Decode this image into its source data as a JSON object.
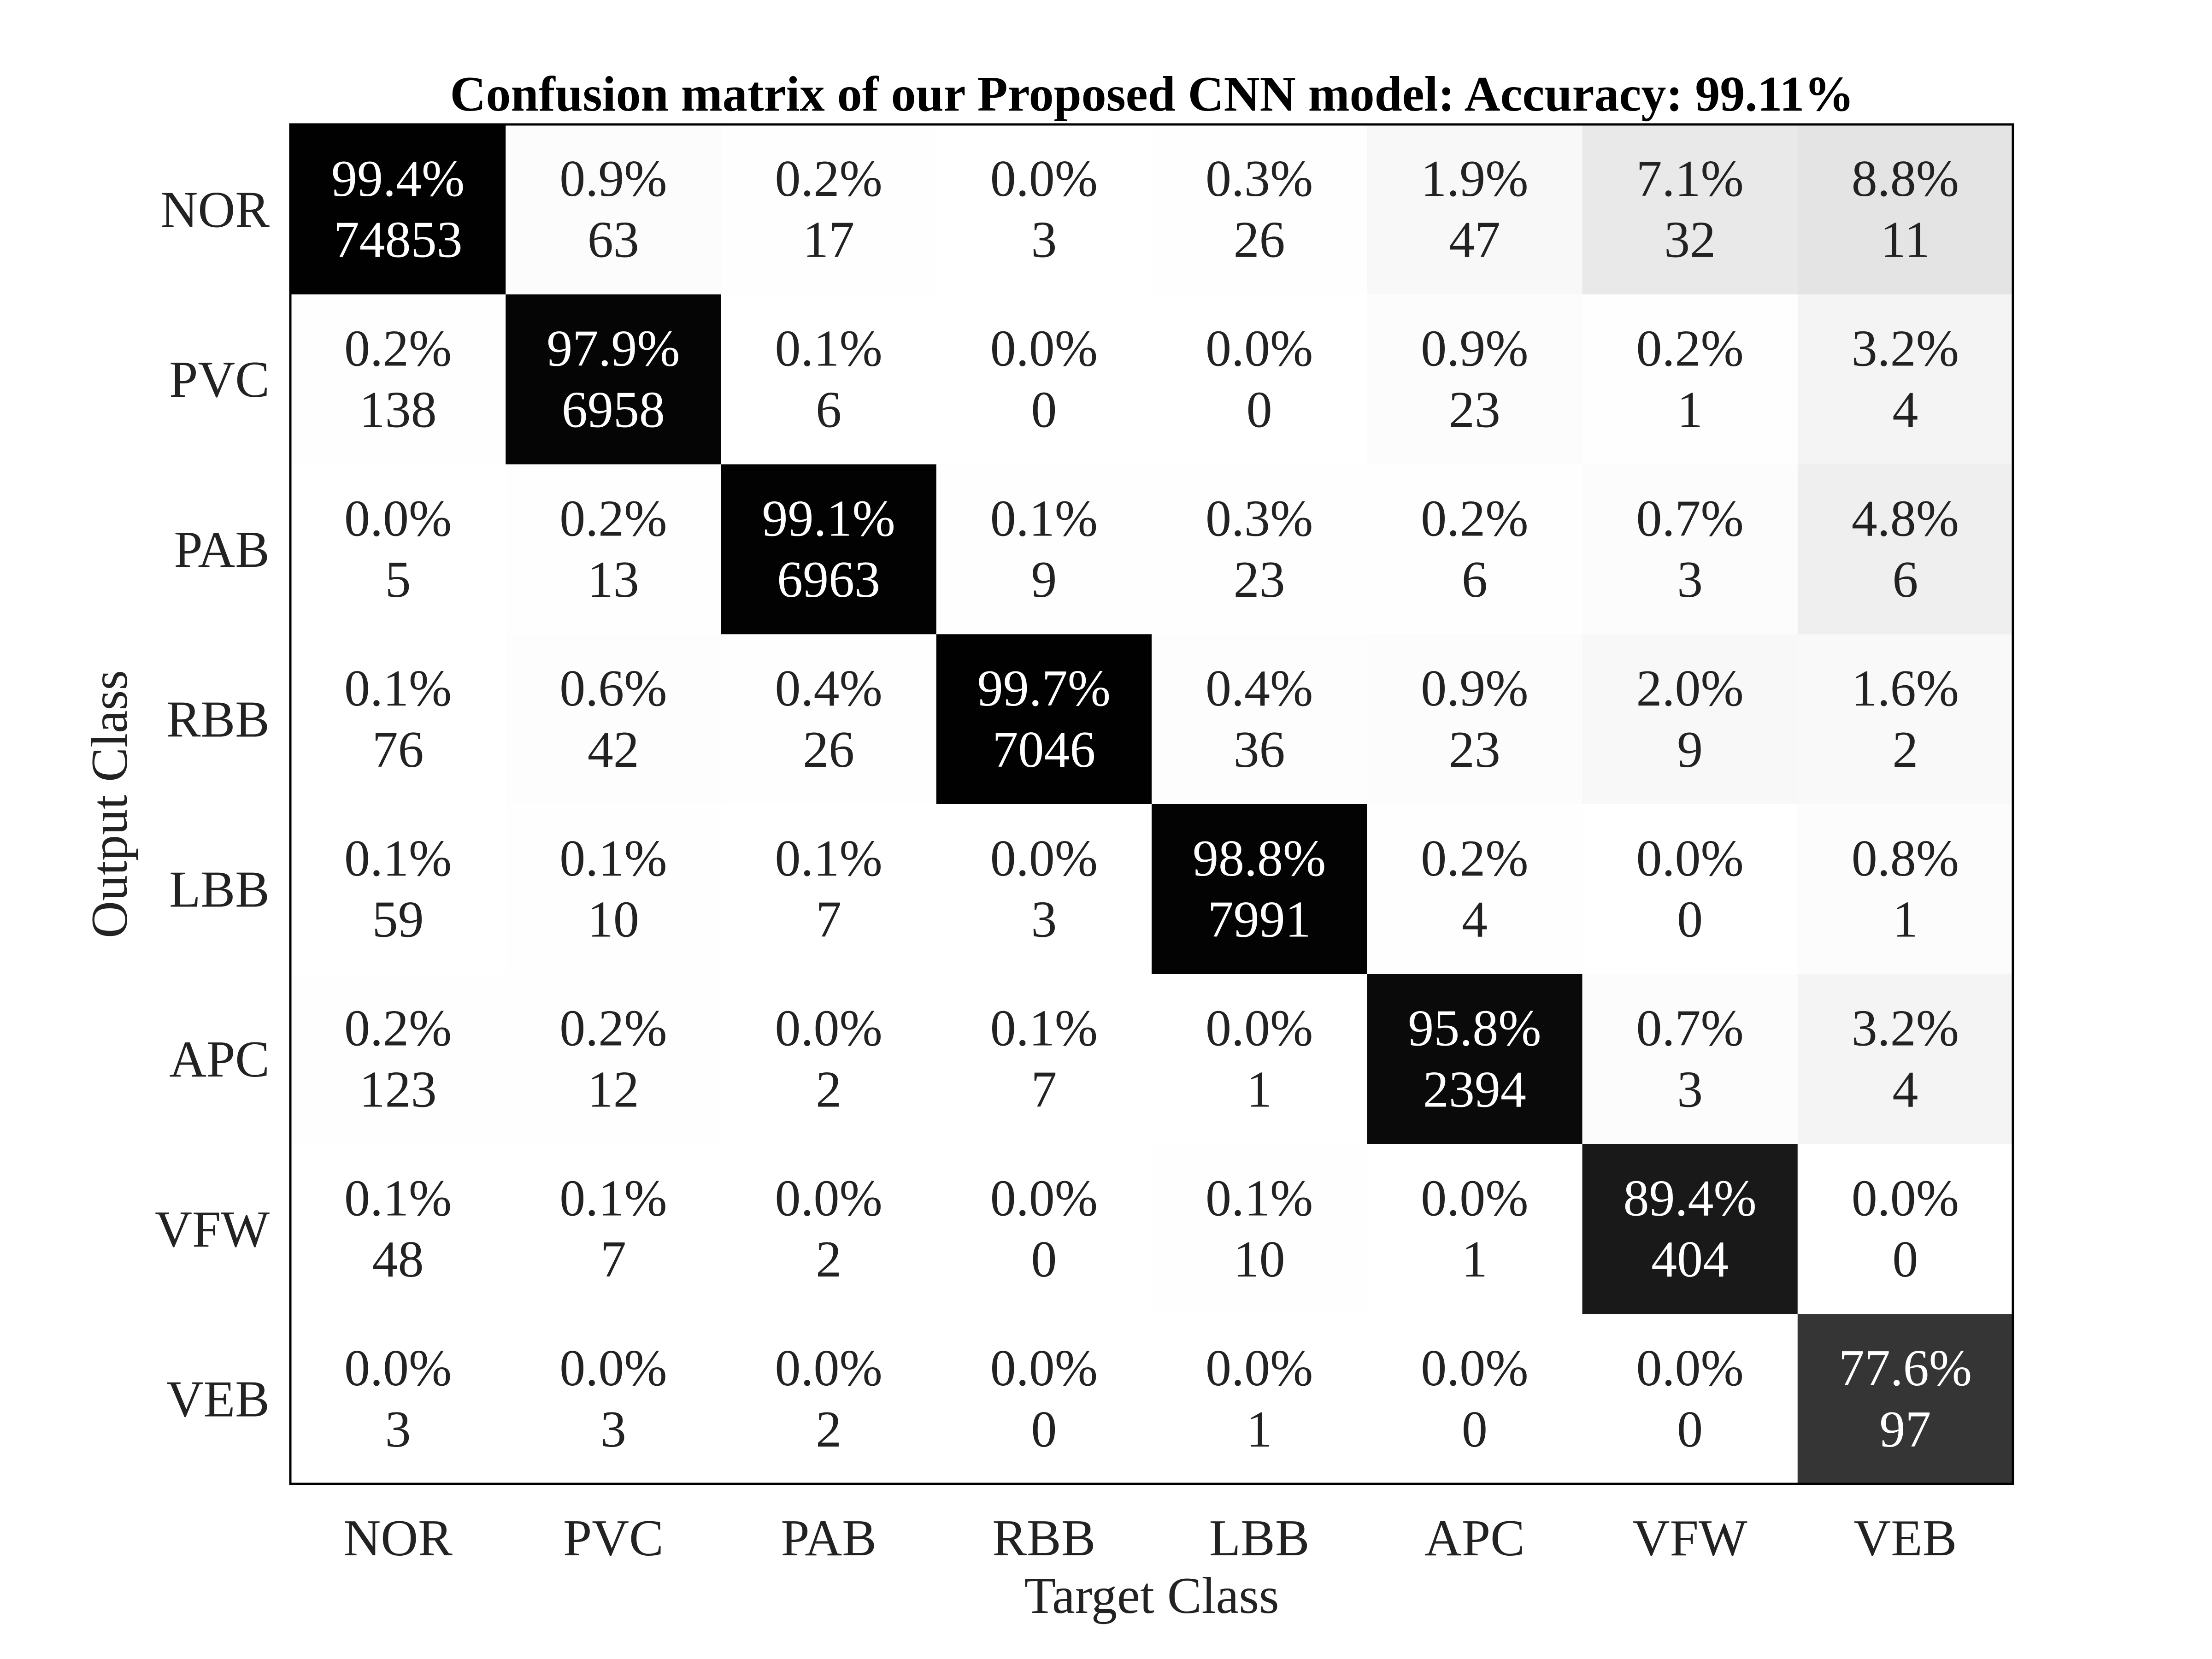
{
  "chart_data": {
    "type": "heatmap",
    "title": "Confusion matrix of our Proposed CNN model: Accuracy: 99.11%",
    "xlabel": "Target Class",
    "ylabel": "Output Class",
    "x_categories": [
      "NOR",
      "PVC",
      "PAB",
      "RBB",
      "LBB",
      "APC",
      "VFW",
      "VEB"
    ],
    "y_categories": [
      "NOR",
      "PVC",
      "PAB",
      "RBB",
      "LBB",
      "APC",
      "VFW",
      "VEB"
    ],
    "counts": [
      [
        74853,
        63,
        17,
        3,
        26,
        47,
        32,
        11
      ],
      [
        138,
        6958,
        6,
        0,
        0,
        23,
        1,
        4
      ],
      [
        5,
        13,
        6963,
        9,
        23,
        6,
        3,
        6
      ],
      [
        76,
        42,
        26,
        7046,
        36,
        23,
        9,
        2
      ],
      [
        59,
        10,
        7,
        3,
        7991,
        4,
        0,
        1
      ],
      [
        123,
        12,
        2,
        7,
        1,
        2394,
        3,
        4
      ],
      [
        48,
        7,
        2,
        0,
        10,
        1,
        404,
        0
      ],
      [
        3,
        3,
        2,
        0,
        1,
        0,
        0,
        97
      ]
    ],
    "percentages": [
      [
        "99.4%",
        "0.9%",
        "0.2%",
        "0.0%",
        "0.3%",
        "1.9%",
        "7.1%",
        "8.8%"
      ],
      [
        "0.2%",
        "97.9%",
        "0.1%",
        "0.0%",
        "0.0%",
        "0.9%",
        "0.2%",
        "3.2%"
      ],
      [
        "0.0%",
        "0.2%",
        "99.1%",
        "0.1%",
        "0.3%",
        "0.2%",
        "0.7%",
        "4.8%"
      ],
      [
        "0.1%",
        "0.6%",
        "0.4%",
        "99.7%",
        "0.4%",
        "0.9%",
        "2.0%",
        "1.6%"
      ],
      [
        "0.1%",
        "0.1%",
        "0.1%",
        "0.0%",
        "98.8%",
        "0.2%",
        "0.0%",
        "0.8%"
      ],
      [
        "0.2%",
        "0.2%",
        "0.0%",
        "0.1%",
        "0.0%",
        "95.8%",
        "0.7%",
        "3.2%"
      ],
      [
        "0.1%",
        "0.1%",
        "0.0%",
        "0.0%",
        "0.1%",
        "0.0%",
        "89.4%",
        "0.0%"
      ],
      [
        "0.0%",
        "0.0%",
        "0.0%",
        "0.0%",
        "0.0%",
        "0.0%",
        "0.0%",
        "77.6%"
      ]
    ],
    "colormap": "gray (white = low, black = high)",
    "grid": false,
    "legend": "none"
  }
}
